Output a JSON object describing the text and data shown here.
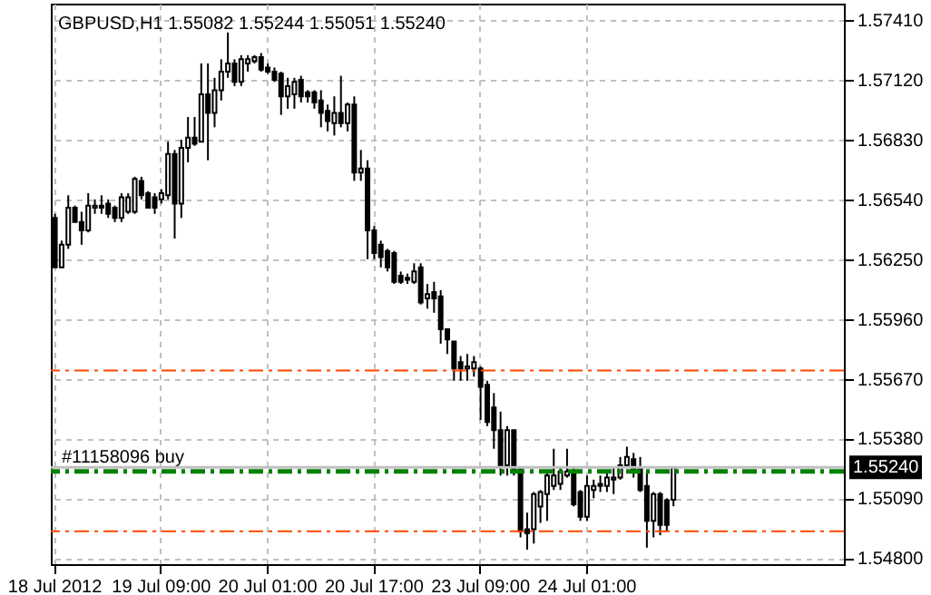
{
  "chart_data": {
    "type": "candlestick",
    "title": "GBPUSD,H1 1.55082 1.55244 1.55051 1.55240",
    "categories": [
      "18 Jul 2012",
      null,
      null,
      null,
      null,
      null,
      null,
      null,
      null,
      null,
      null,
      null,
      null,
      null,
      null,
      null,
      "19 Jul 09:00",
      null,
      null,
      null,
      null,
      null,
      null,
      null,
      null,
      null,
      null,
      null,
      null,
      null,
      null,
      null,
      "20 Jul 01:00",
      null,
      null,
      null,
      null,
      null,
      null,
      null,
      null,
      null,
      null,
      null,
      null,
      null,
      null,
      null,
      "20 Jul 17:00",
      null,
      null,
      null,
      null,
      null,
      null,
      null,
      null,
      null,
      null,
      null,
      null,
      null,
      null,
      null,
      "23 Jul 09:00",
      null,
      null,
      null,
      null,
      null,
      null,
      null,
      null,
      null,
      null,
      null,
      null,
      null,
      null,
      null,
      "24 Jul 01:00",
      null,
      null,
      null,
      null,
      null,
      null,
      null,
      null,
      null,
      null,
      null,
      null,
      null,
      null,
      null,
      null,
      null,
      null,
      null,
      null,
      null,
      null,
      null,
      null,
      null,
      null,
      null,
      null,
      null,
      null,
      null,
      null,
      null,
      null,
      null,
      null,
      null,
      null
    ],
    "ohlc": [
      [
        1.5645,
        1.5647,
        1.5621,
        1.5621
      ],
      [
        1.5621,
        1.5634,
        1.5621,
        1.5632
      ],
      [
        1.5632,
        1.5656,
        1.563,
        1.565
      ],
      [
        1.565,
        1.5651,
        1.5643,
        1.5643
      ],
      [
        1.5643,
        1.5648,
        1.5632,
        1.5639
      ],
      [
        1.5639,
        1.5657,
        1.5638,
        1.5651
      ],
      [
        1.565,
        1.5654,
        1.5647,
        1.5651
      ],
      [
        1.5651,
        1.5656,
        1.5647,
        1.565
      ],
      [
        1.5652,
        1.5654,
        1.5645,
        1.5647
      ],
      [
        1.565,
        1.5651,
        1.5643,
        1.5645
      ],
      [
        1.5645,
        1.5657,
        1.5643,
        1.5655
      ],
      [
        1.5648,
        1.5657,
        1.5647,
        1.5655
      ],
      [
        1.5648,
        1.5665,
        1.5647,
        1.5664
      ],
      [
        1.5663,
        1.5665,
        1.5654,
        1.5656
      ],
      [
        1.5657,
        1.5658,
        1.565,
        1.565
      ],
      [
        1.5655,
        1.5657,
        1.5647,
        1.565
      ],
      [
        1.5654,
        1.5659,
        1.5652,
        1.5657
      ],
      [
        1.5656,
        1.5682,
        1.5654,
        1.5676
      ],
      [
        1.5676,
        1.5678,
        1.5635,
        1.5652
      ],
      [
        1.5652,
        1.5683,
        1.5645,
        1.5679
      ],
      [
        1.5679,
        1.5694,
        1.5672,
        1.5684
      ],
      [
        1.5684,
        1.5694,
        1.568,
        1.5681
      ],
      [
        1.5682,
        1.572,
        1.5682,
        1.5705
      ],
      [
        1.5705,
        1.572,
        1.5673,
        1.5696
      ],
      [
        1.5696,
        1.5713,
        1.5689,
        1.5707
      ],
      [
        1.5707,
        1.5722,
        1.5702,
        1.5716
      ],
      [
        1.5716,
        1.5735,
        1.5713,
        1.572
      ],
      [
        1.572,
        1.5722,
        1.5709,
        1.5711
      ],
      [
        1.5711,
        1.5724,
        1.5709,
        1.5722
      ],
      [
        1.572,
        1.5724,
        1.5716,
        1.5722
      ],
      [
        1.5721,
        1.5724,
        1.572,
        1.5723
      ],
      [
        1.5723,
        1.5725,
        1.5716,
        1.5717
      ],
      [
        1.5718,
        1.572,
        1.5715,
        1.5716
      ],
      [
        1.5716,
        1.5718,
        1.5711,
        1.5712
      ],
      [
        1.5715,
        1.5716,
        1.5695,
        1.5704
      ],
      [
        1.5704,
        1.5713,
        1.5698,
        1.5709
      ],
      [
        1.5705,
        1.5713,
        1.5698,
        1.5711
      ],
      [
        1.5712,
        1.5714,
        1.5701,
        1.5704
      ],
      [
        1.5706,
        1.5707,
        1.5701,
        1.5704
      ],
      [
        1.5706,
        1.5707,
        1.5698,
        1.5701
      ],
      [
        1.5702,
        1.5707,
        1.5689,
        1.5696
      ],
      [
        1.5697,
        1.57,
        1.5687,
        1.5692
      ],
      [
        1.5691,
        1.5704,
        1.5685,
        1.5696
      ],
      [
        1.5696,
        1.5714,
        1.5689,
        1.5691
      ],
      [
        1.5691,
        1.5701,
        1.5687,
        1.57
      ],
      [
        1.57,
        1.5704,
        1.5663,
        1.5667
      ],
      [
        1.5667,
        1.5678,
        1.5663,
        1.5669
      ],
      [
        1.5669,
        1.5673,
        1.5625,
        1.5639
      ],
      [
        1.5639,
        1.5641,
        1.5625,
        1.5628
      ],
      [
        1.5632,
        1.5634,
        1.5621,
        1.5626
      ],
      [
        1.5629,
        1.563,
        1.5619,
        1.5621
      ],
      [
        1.5628,
        1.5629,
        1.5613,
        1.5614
      ],
      [
        1.5617,
        1.5619,
        1.5613,
        1.5614
      ],
      [
        1.5616,
        1.5618,
        1.5613,
        1.5615
      ],
      [
        1.5614,
        1.5623,
        1.5613,
        1.5619
      ],
      [
        1.5621,
        1.5623,
        1.5603,
        1.5604
      ],
      [
        1.5606,
        1.5613,
        1.5601,
        1.5608
      ],
      [
        1.5609,
        1.5614,
        1.5599,
        1.5606
      ],
      [
        1.5607,
        1.561,
        1.5584,
        1.5591
      ],
      [
        1.5591,
        1.5591,
        1.5579,
        1.5586
      ],
      [
        1.5585,
        1.5585,
        1.5566,
        1.5572
      ],
      [
        1.5575,
        1.5578,
        1.5566,
        1.5572
      ],
      [
        1.5572,
        1.5579,
        1.5566,
        1.5573
      ],
      [
        1.5572,
        1.5578,
        1.5568,
        1.5575
      ],
      [
        1.5572,
        1.5573,
        1.5547,
        1.5563
      ],
      [
        1.5564,
        1.5566,
        1.5544,
        1.5546
      ],
      [
        1.5553,
        1.556,
        1.5533,
        1.5542
      ],
      [
        1.5542,
        1.5551,
        1.552,
        1.5525
      ],
      [
        1.5525,
        1.5544,
        1.552,
        1.5542
      ],
      [
        1.5542,
        1.5542,
        1.552,
        1.5522
      ],
      [
        1.5523,
        1.5524,
        1.549,
        1.5493
      ],
      [
        1.5494,
        1.5502,
        1.5484,
        1.5492
      ],
      [
        1.5494,
        1.5512,
        1.5487,
        1.5511
      ],
      [
        1.5505,
        1.5513,
        1.5497,
        1.5512
      ],
      [
        1.5511,
        1.5522,
        1.5498,
        1.552
      ],
      [
        1.5515,
        1.5533,
        1.5513,
        1.552
      ],
      [
        1.5516,
        1.5524,
        1.5513,
        1.5522
      ],
      [
        1.552,
        1.5533,
        1.5519,
        1.5522
      ],
      [
        1.5522,
        1.5524,
        1.5505,
        1.5506
      ],
      [
        1.5512,
        1.5513,
        1.5498,
        1.55
      ],
      [
        1.55,
        1.552,
        1.5498,
        1.5515
      ],
      [
        1.5513,
        1.5518,
        1.5509,
        1.5515
      ],
      [
        1.5516,
        1.552,
        1.5512,
        1.5515
      ],
      [
        1.5515,
        1.5522,
        1.5512,
        1.5519
      ],
      [
        1.5518,
        1.5524,
        1.5511,
        1.5519
      ],
      [
        1.5519,
        1.5529,
        1.5518,
        1.5525
      ],
      [
        1.5525,
        1.5534,
        1.5524,
        1.5529
      ],
      [
        1.5528,
        1.5531,
        1.5519,
        1.5522
      ],
      [
        1.5524,
        1.5529,
        1.5512,
        1.5513
      ],
      [
        1.5515,
        1.5522,
        1.5485,
        1.5498
      ],
      [
        1.5498,
        1.5512,
        1.549,
        1.5511
      ],
      [
        1.5511,
        1.5512,
        1.5491,
        1.5496
      ],
      [
        1.5508,
        1.5509,
        1.5493,
        1.5496
      ],
      [
        1.55082,
        1.55244,
        1.55051,
        1.5524
      ],
      null,
      null,
      null,
      null,
      null,
      null,
      null,
      null,
      null,
      null,
      null,
      null,
      null,
      null,
      null,
      null,
      null,
      null,
      null,
      null,
      null,
      null,
      null,
      null,
      null
    ],
    "ylim": [
      1.5477,
      1.5749
    ],
    "yticks": [
      {
        "value": 1.548,
        "label": "1.54800"
      },
      {
        "value": 1.5509,
        "label": "1.55090"
      },
      {
        "value": 1.5538,
        "label": "1.55380"
      },
      {
        "value": 1.5567,
        "label": "1.55670"
      },
      {
        "value": 1.5596,
        "label": "1.55960"
      },
      {
        "value": 1.5625,
        "label": "1.56250"
      },
      {
        "value": 1.5654,
        "label": "1.56540"
      },
      {
        "value": 1.5683,
        "label": "1.56830"
      },
      {
        "value": 1.5712,
        "label": "1.57120"
      },
      {
        "value": 1.5741,
        "label": "1.57410"
      }
    ],
    "grid": true,
    "ref_lines": [
      {
        "axis": "y",
        "value": 1.5571,
        "color": "#ff4500",
        "line_style": "dashed"
      },
      {
        "axis": "y",
        "value": 1.5493,
        "color": "#ff4500",
        "line_style": "dashed"
      },
      {
        "axis": "y",
        "value": 1.5522,
        "label": "#11158096 buy",
        "color": "#008000",
        "line_style": "dashed"
      },
      {
        "axis": "y",
        "value": 1.5524,
        "label": "1.55240",
        "color": "#c0c0c0",
        "line_style": "solid"
      }
    ]
  }
}
